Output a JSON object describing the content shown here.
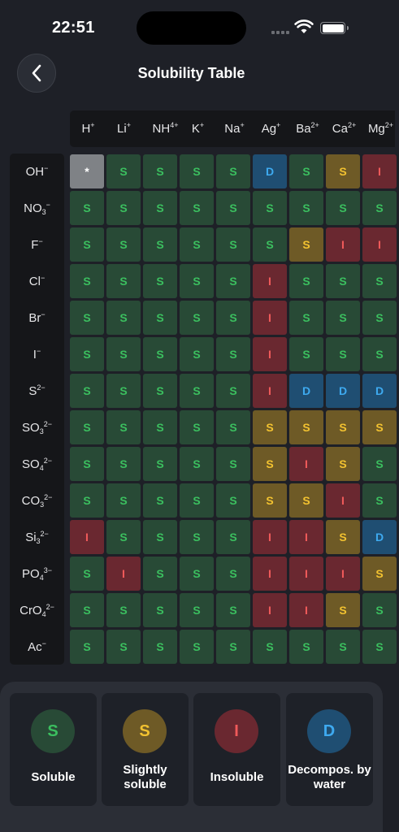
{
  "status": {
    "time": "22:51"
  },
  "header": {
    "title": "Solubility Table"
  },
  "cations": [
    {
      "base": "H",
      "charge": "+"
    },
    {
      "base": "Li",
      "charge": "+"
    },
    {
      "base": "NH",
      "charge": "4+"
    },
    {
      "base": "K",
      "charge": "+"
    },
    {
      "base": "Na",
      "charge": "+"
    },
    {
      "base": "Ag",
      "charge": "+"
    },
    {
      "base": "Ba",
      "charge": "2+"
    },
    {
      "base": "Ca",
      "charge": "2+"
    },
    {
      "base": "Mg",
      "charge": "2+"
    }
  ],
  "anions": [
    {
      "base": "OH",
      "sub": "",
      "charge": "−"
    },
    {
      "base": "NO",
      "sub": "3",
      "charge": "−"
    },
    {
      "base": "F",
      "sub": "",
      "charge": "−"
    },
    {
      "base": "Cl",
      "sub": "",
      "charge": "−"
    },
    {
      "base": "Br",
      "sub": "",
      "charge": "−"
    },
    {
      "base": "I",
      "sub": "",
      "charge": "−"
    },
    {
      "base": "S",
      "sub": "",
      "charge": "2−"
    },
    {
      "base": "SO",
      "sub": "3",
      "charge": "2−"
    },
    {
      "base": "SO",
      "sub": "4",
      "charge": "2−"
    },
    {
      "base": "CO",
      "sub": "3",
      "charge": "2−"
    },
    {
      "base": "Si",
      "sub": "3",
      "charge": "2−"
    },
    {
      "base": "PO",
      "sub": "4",
      "charge": "3−"
    },
    {
      "base": "CrO",
      "sub": "4",
      "charge": "2−"
    },
    {
      "base": "Ac",
      "sub": "",
      "charge": "−"
    }
  ],
  "table": [
    [
      "*",
      "S",
      "S",
      "S",
      "S",
      "D",
      "S",
      "s",
      "I"
    ],
    [
      "S",
      "S",
      "S",
      "S",
      "S",
      "S",
      "S",
      "S",
      "S"
    ],
    [
      "S",
      "S",
      "S",
      "S",
      "S",
      "S",
      "s",
      "I",
      "I"
    ],
    [
      "S",
      "S",
      "S",
      "S",
      "S",
      "I",
      "S",
      "S",
      "S"
    ],
    [
      "S",
      "S",
      "S",
      "S",
      "S",
      "I",
      "S",
      "S",
      "S"
    ],
    [
      "S",
      "S",
      "S",
      "S",
      "S",
      "I",
      "S",
      "S",
      "S"
    ],
    [
      "S",
      "S",
      "S",
      "S",
      "S",
      "I",
      "D",
      "D",
      "D"
    ],
    [
      "S",
      "S",
      "S",
      "S",
      "S",
      "s",
      "s",
      "s",
      "s"
    ],
    [
      "S",
      "S",
      "S",
      "S",
      "S",
      "s",
      "I",
      "s",
      "S"
    ],
    [
      "S",
      "S",
      "S",
      "S",
      "S",
      "s",
      "s",
      "I",
      "S"
    ],
    [
      "I",
      "S",
      "S",
      "S",
      "S",
      "I",
      "I",
      "s",
      "D"
    ],
    [
      "S",
      "I",
      "S",
      "S",
      "S",
      "I",
      "I",
      "I",
      "s"
    ],
    [
      "S",
      "S",
      "S",
      "S",
      "S",
      "I",
      "I",
      "s",
      "S"
    ],
    [
      "S",
      "S",
      "S",
      "S",
      "S",
      "S",
      "S",
      "S",
      "S"
    ]
  ],
  "legend": [
    {
      "code": "S",
      "label": "Soluble",
      "bg": "#284a36",
      "color": "#3bbf5f"
    },
    {
      "code": "S",
      "label": "Slightly soluble",
      "bg": "#6e5a26",
      "color": "#f2c230"
    },
    {
      "code": "I",
      "label": "Insoluble",
      "bg": "#6a2830",
      "color": "#f05a5a"
    },
    {
      "code": "D",
      "label": "Decompos. by water",
      "bg": "#1f4e72",
      "color": "#3eaaf0"
    }
  ]
}
